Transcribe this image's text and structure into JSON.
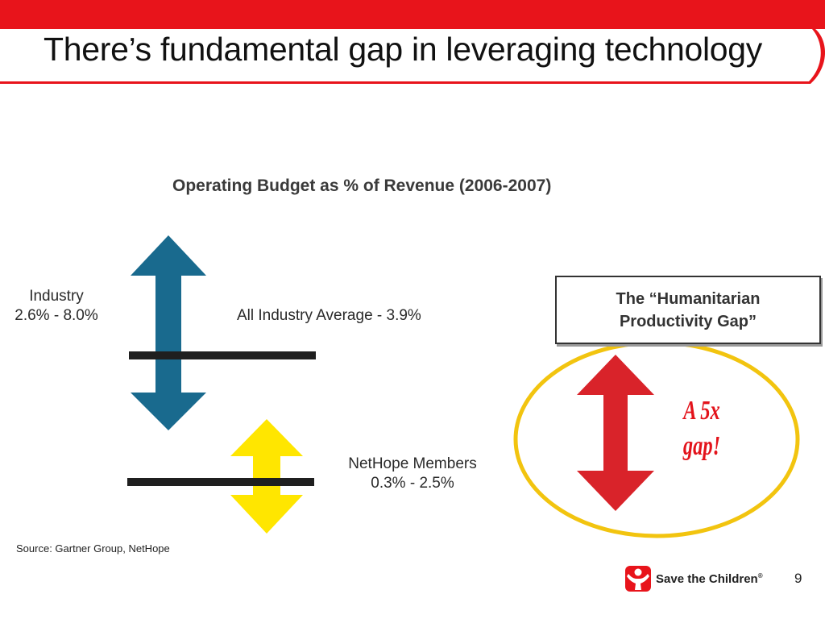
{
  "slide": {
    "title": "There’s fundamental gap in leveraging technology",
    "page_number": "9"
  },
  "diagram": {
    "chart_title": "Operating Budget as % of Revenue (2006-2007)",
    "industry_label": "Industry",
    "industry_range": "2.6% - 8.0%",
    "industry_average_label": "All Industry Average - 3.9%",
    "nethope_label": "NetHope Members",
    "nethope_range": "0.3% - 2.5%",
    "source": "Source: Gartner Group, NetHope",
    "gap_box_line1": "The “Humanitarian",
    "gap_box_line2": "Productivity Gap”",
    "gap_annotation_line1": "A 5x",
    "gap_annotation_line2": "gap!"
  },
  "logo": {
    "text": "Save the Children",
    "mark": "®"
  },
  "colors": {
    "header_red": "#e8141b",
    "industry_arrow": "#196a8e",
    "nethope_arrow": "#ffe600",
    "gap_arrow": "#d9232a",
    "ellipse": "#f2c40f",
    "annotation": "#e3131b"
  },
  "icons": {
    "industry_arrow": "double-arrow-vertical-icon",
    "nethope_arrow": "double-arrow-vertical-icon",
    "gap_arrow": "double-arrow-vertical-icon",
    "logo_mark": "child-figure-icon"
  }
}
